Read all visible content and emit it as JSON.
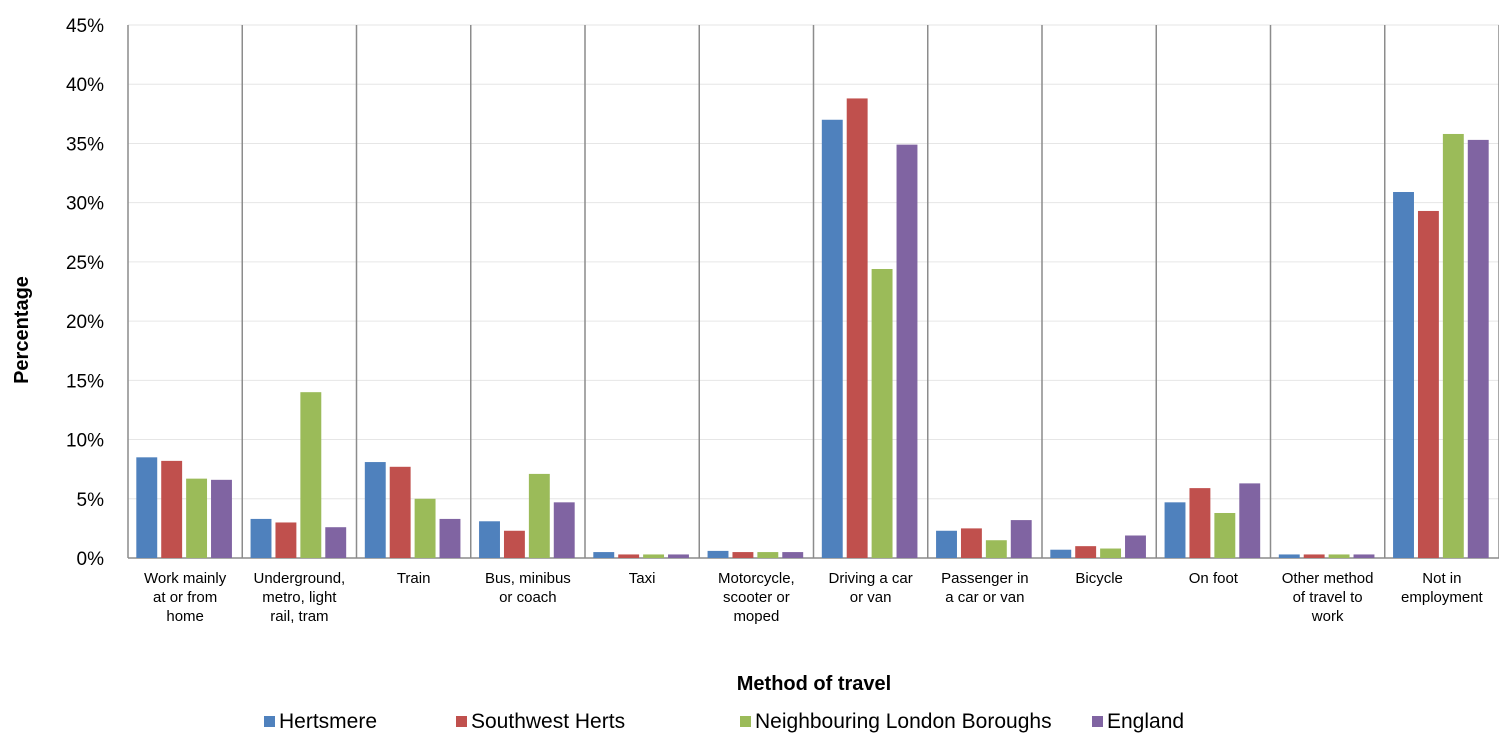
{
  "chart_data": {
    "type": "bar",
    "title": "",
    "xlabel": "Method of travel",
    "ylabel": "Percentage",
    "ylim": [
      0,
      45
    ],
    "yticks": [
      "0%",
      "5%",
      "10%",
      "15%",
      "20%",
      "25%",
      "30%",
      "35%",
      "40%",
      "45%"
    ],
    "grid": true,
    "legend_position": "bottom",
    "categories": [
      [
        "Work mainly",
        "at or from",
        "home"
      ],
      [
        "Underground,",
        "metro, light",
        "rail, tram"
      ],
      [
        "Train"
      ],
      [
        "Bus, minibus",
        "or coach"
      ],
      [
        "Taxi"
      ],
      [
        "Motorcycle,",
        "scooter or",
        "moped"
      ],
      [
        "Driving a car",
        "or van"
      ],
      [
        "Passenger in",
        "a car or van"
      ],
      [
        "Bicycle"
      ],
      [
        "On foot"
      ],
      [
        "Other method",
        "of travel to",
        "work"
      ],
      [
        "Not in",
        "employment"
      ]
    ],
    "series": [
      {
        "name": "Hertsmere",
        "color": "#4F81BD",
        "values": [
          8.5,
          3.3,
          8.1,
          3.1,
          0.5,
          0.6,
          37.0,
          2.3,
          0.7,
          4.7,
          0.3,
          30.9
        ]
      },
      {
        "name": "Southwest Herts",
        "color": "#C0504D",
        "values": [
          8.2,
          3.0,
          7.7,
          2.3,
          0.3,
          0.5,
          38.8,
          2.5,
          1.0,
          5.9,
          0.3,
          29.3
        ]
      },
      {
        "name": "Neighbouring London Boroughs",
        "color": "#9BBB59",
        "values": [
          6.7,
          14.0,
          5.0,
          7.1,
          0.3,
          0.5,
          24.4,
          1.5,
          0.8,
          3.8,
          0.3,
          35.8
        ]
      },
      {
        "name": "England",
        "color": "#8064A2",
        "values": [
          6.6,
          2.6,
          3.3,
          4.7,
          0.3,
          0.5,
          34.9,
          3.2,
          1.9,
          6.3,
          0.3,
          35.3
        ]
      }
    ]
  }
}
